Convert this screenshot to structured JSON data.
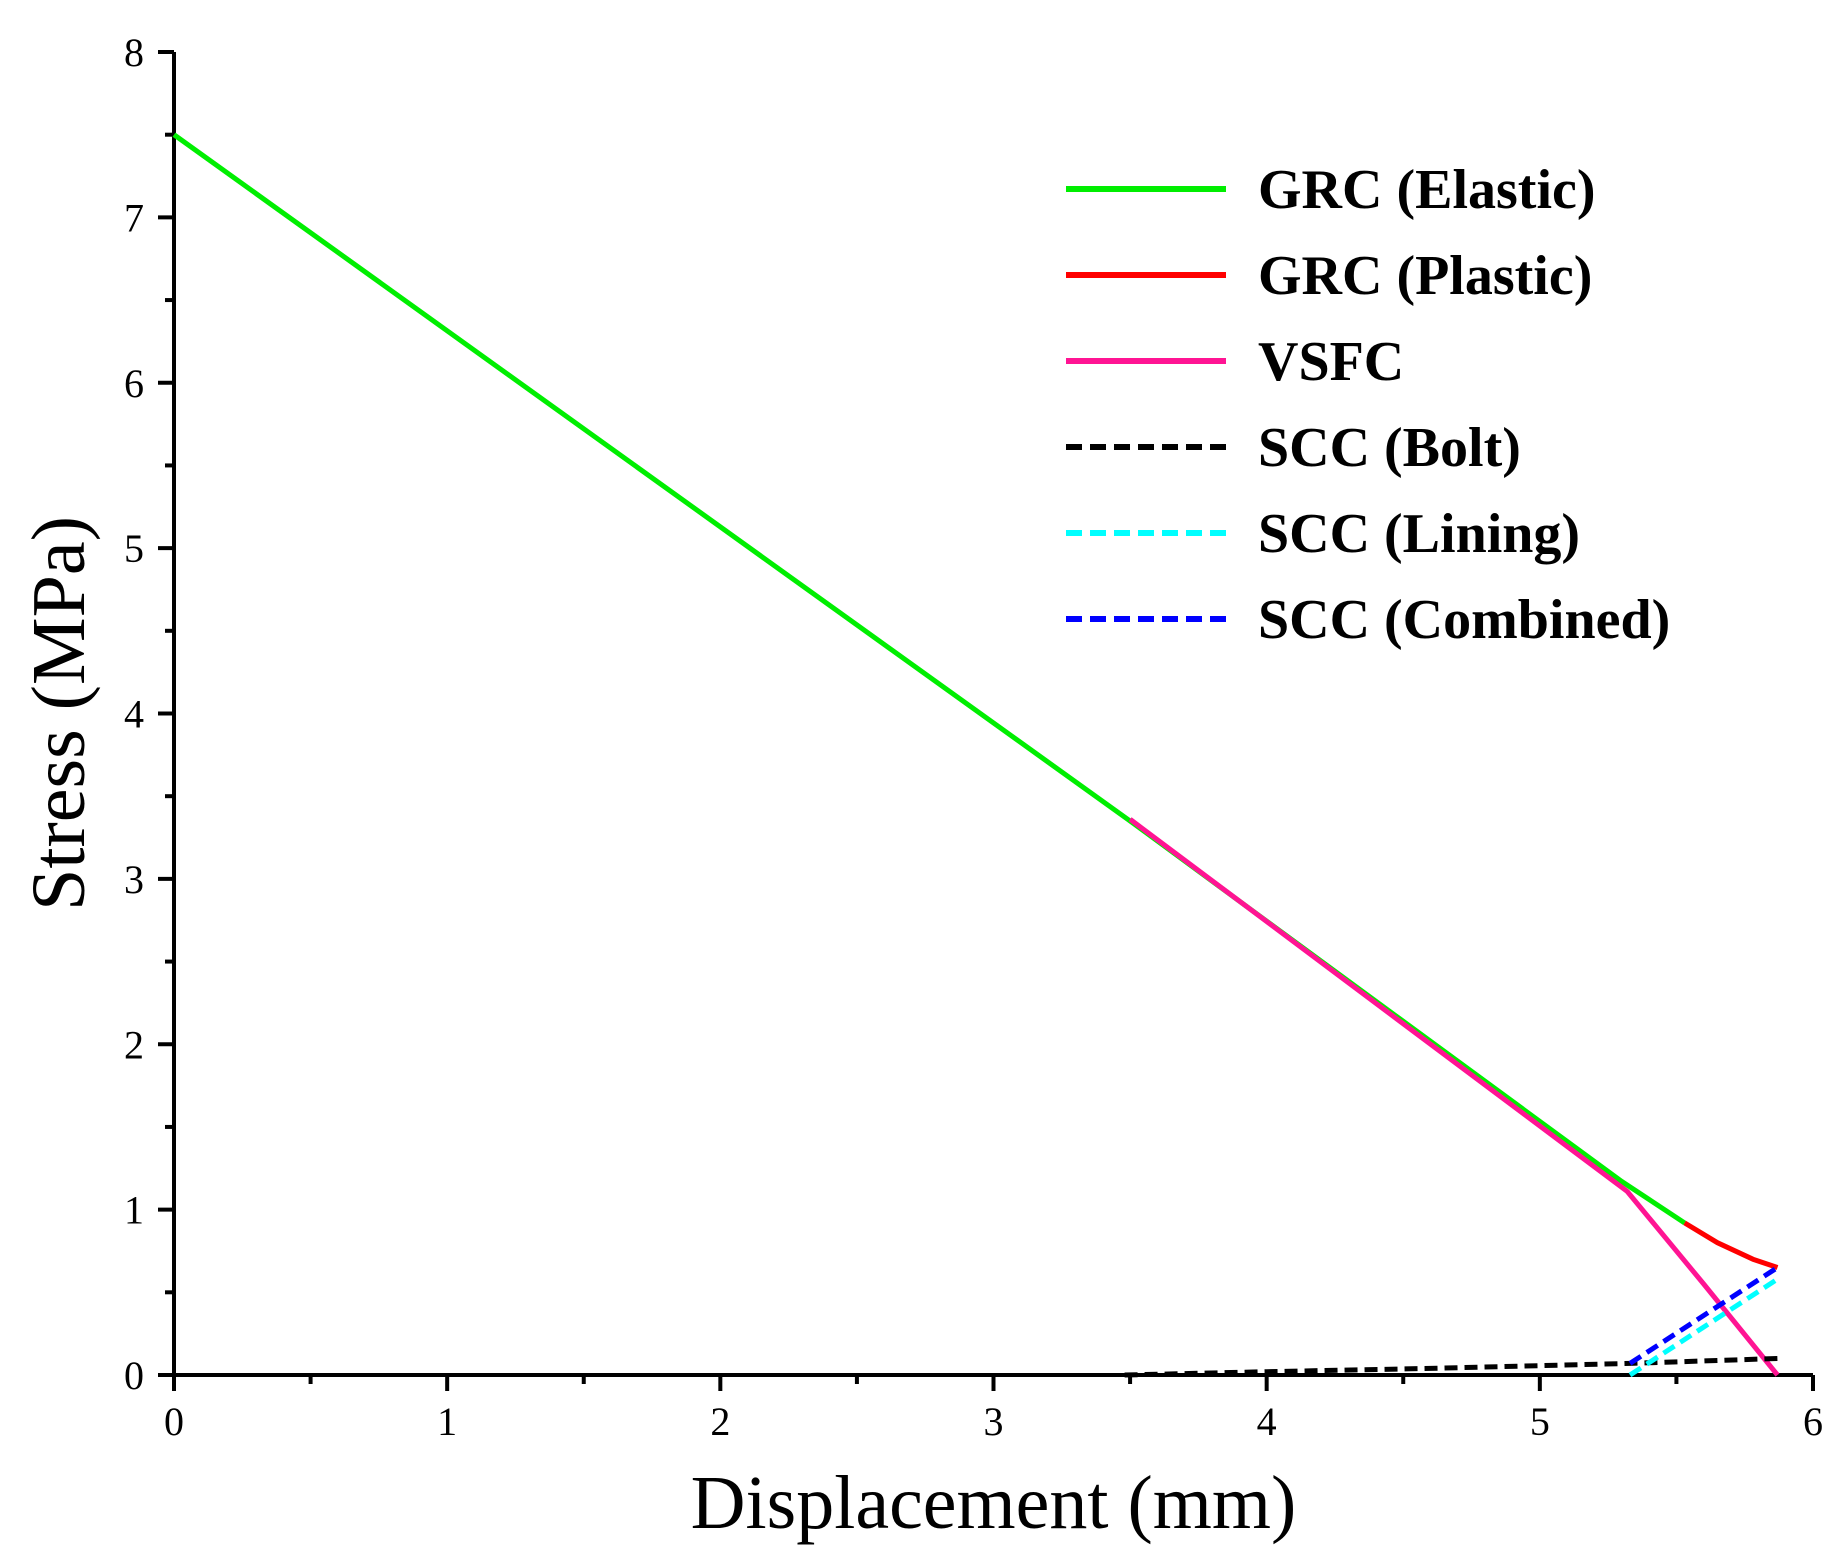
{
  "chart_data": {
    "type": "line",
    "xlabel": "Displacement (mm)",
    "ylabel": "Stress (MPa)",
    "xlim": [
      0,
      6
    ],
    "ylim": [
      0,
      8
    ],
    "xticks": [
      0,
      1,
      2,
      3,
      4,
      5,
      6
    ],
    "yticks": [
      0,
      1,
      2,
      3,
      4,
      5,
      6,
      7,
      8
    ],
    "xtick_labels": [
      "0",
      "1",
      "2",
      "3",
      "4",
      "5",
      "6"
    ],
    "ytick_labels": [
      "0",
      "1",
      "2",
      "3",
      "4",
      "5",
      "6",
      "7",
      "8"
    ],
    "grid": false,
    "legend_position": "top-right",
    "series": [
      {
        "name": "GRC (Elastic)",
        "color": "#00ee00",
        "dash": "solid",
        "points": [
          [
            0,
            7.5
          ],
          [
            3.5,
            3.35
          ],
          [
            5.3,
            1.17
          ],
          [
            5.53,
            0.92
          ]
        ]
      },
      {
        "name": "GRC (Plastic)",
        "color": "#ff0000",
        "dash": "solid",
        "points": [
          [
            5.53,
            0.92
          ],
          [
            5.65,
            0.8
          ],
          [
            5.78,
            0.7
          ],
          [
            5.87,
            0.65
          ]
        ]
      },
      {
        "name": "VSFC",
        "color": "#ff1493",
        "dash": "solid",
        "points": [
          [
            3.5,
            3.36
          ],
          [
            5.32,
            1.11
          ],
          [
            5.6,
            0.55
          ],
          [
            5.87,
            0.0
          ]
        ]
      },
      {
        "name": "SCC (Bolt)",
        "color": "#000000",
        "dash": "dashed",
        "points": [
          [
            3.48,
            0.0
          ],
          [
            4.0,
            0.02
          ],
          [
            4.6,
            0.04
          ],
          [
            5.33,
            0.07
          ],
          [
            5.87,
            0.1
          ]
        ]
      },
      {
        "name": "SCC (Lining)",
        "color": "#00ffff",
        "dash": "dashed",
        "points": [
          [
            5.33,
            0.0
          ],
          [
            5.87,
            0.58
          ]
        ]
      },
      {
        "name": "SCC (Combined)",
        "color": "#0000ff",
        "dash": "dashed",
        "points": [
          [
            5.33,
            0.07
          ],
          [
            5.87,
            0.65
          ]
        ]
      }
    ]
  }
}
